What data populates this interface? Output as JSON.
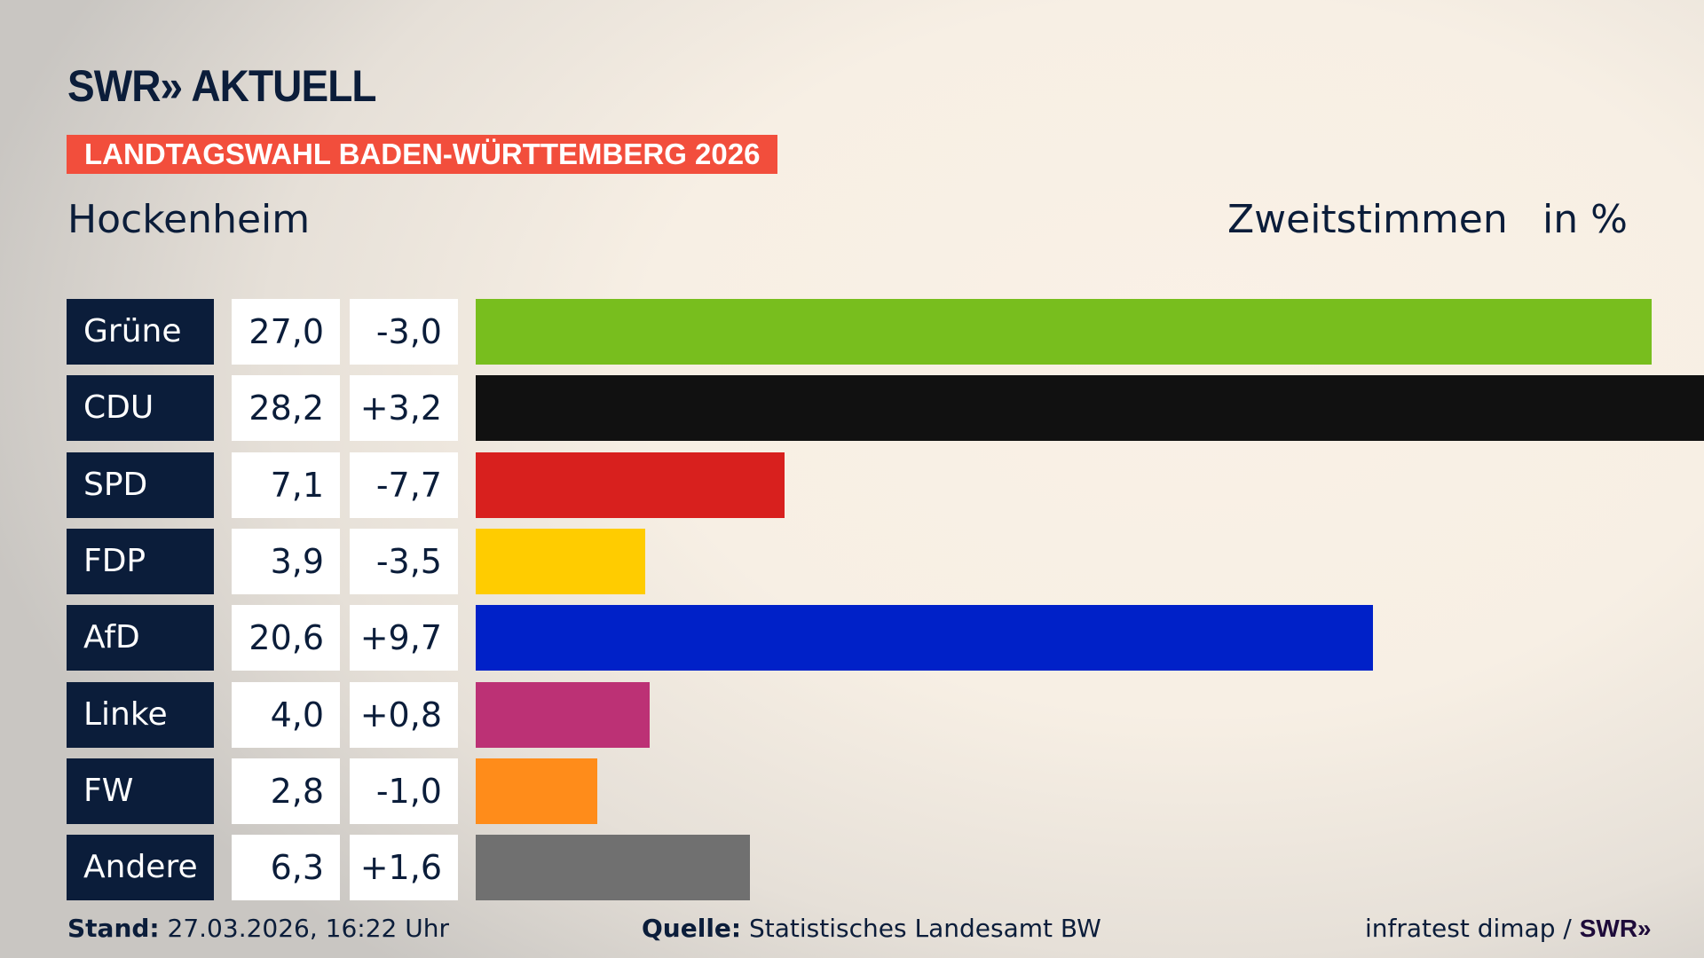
{
  "header": {
    "logo": "SWR» AKTUELL",
    "banner": "LANDTAGSWAHL BADEN-WÜRTTEMBERG 2026",
    "place": "Hockenheim",
    "vote_type": "Zweitstimmen",
    "unit": "in %"
  },
  "chart_data": {
    "type": "bar",
    "orientation": "horizontal",
    "title": "Hockenheim",
    "categories": [
      "Grüne",
      "CDU",
      "SPD",
      "FDP",
      "AfD",
      "Linke",
      "FW",
      "Andere"
    ],
    "values": [
      27.0,
      28.2,
      7.1,
      3.9,
      20.6,
      4.0,
      2.8,
      6.3
    ],
    "value_labels": [
      "27,0",
      "28,2",
      "7,1",
      "3,9",
      "20,6",
      "4,0",
      "2,8",
      "6,3"
    ],
    "diff_labels": [
      "-3,0",
      "+3,2",
      "-7,7",
      "-3,5",
      "+9,7",
      "+0,8",
      "-1,0",
      "+1,6"
    ],
    "diffs": [
      -3.0,
      3.2,
      -7.7,
      -3.5,
      9.7,
      0.8,
      -1.0,
      1.6
    ],
    "colors": [
      "#78be1e",
      "#111111",
      "#d8201e",
      "#ffcc00",
      "#0021c8",
      "#bc3175",
      "#ff8c1a",
      "#707070"
    ],
    "xlim": [
      0,
      28.2
    ],
    "grid": false
  },
  "footer": {
    "stand_label": "Stand:",
    "stand_value": "27.03.2026, 16:22 Uhr",
    "source_label": "Quelle:",
    "source_value": "Statistisches Landesamt BW",
    "credit": "infratest dimap / ",
    "credit_logo": "SWR»"
  }
}
